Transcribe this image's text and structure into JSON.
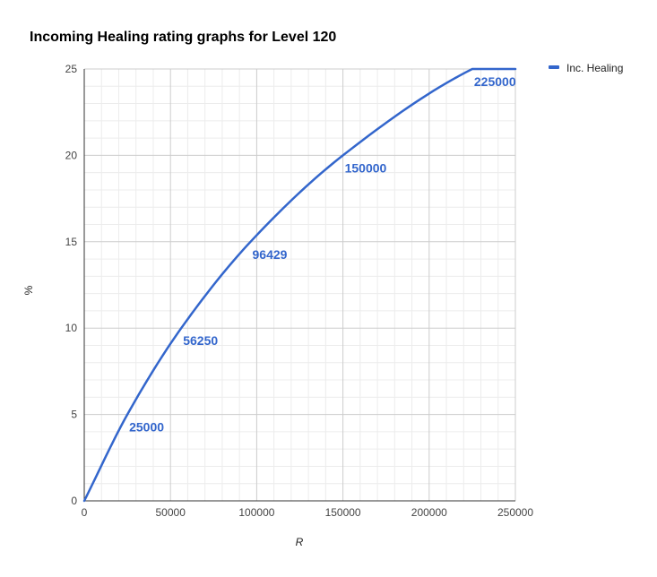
{
  "chart_data": {
    "type": "line",
    "title": "Incoming Healing rating graphs for Level 120",
    "xlabel": "R",
    "ylabel": "%",
    "xlim": [
      0,
      250000
    ],
    "ylim": [
      0,
      25
    ],
    "x_ticks": [
      "0",
      "50000",
      "100000",
      "150000",
      "200000",
      "250000"
    ],
    "y_ticks": [
      "0",
      "5",
      "10",
      "15",
      "20",
      "25"
    ],
    "grid": true,
    "legend_position": "top-right",
    "series": [
      {
        "name": "Inc. Healing",
        "color": "#3366cc",
        "x": [
          0,
          25000,
          56250,
          96429,
          150000,
          225000,
          250000
        ],
        "y": [
          0,
          5,
          10,
          15,
          20,
          25,
          25
        ]
      }
    ],
    "data_labels": [
      {
        "x": 25000,
        "y": 5,
        "text": "25000"
      },
      {
        "x": 56250,
        "y": 10,
        "text": "56250"
      },
      {
        "x": 96429,
        "y": 15,
        "text": "96429"
      },
      {
        "x": 150000,
        "y": 20,
        "text": "150000"
      },
      {
        "x": 225000,
        "y": 25,
        "text": "225000"
      }
    ]
  }
}
